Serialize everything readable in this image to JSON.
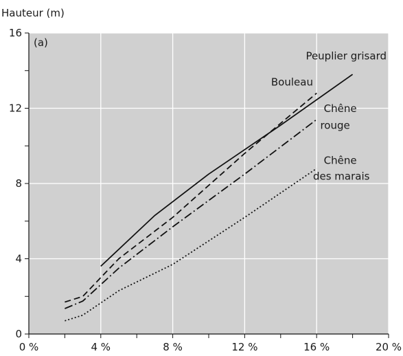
{
  "chart_data": {
    "type": "line",
    "title": "",
    "panel_label": "(a)",
    "ylabel": "Hauteur (m)",
    "xlabel": "",
    "xlim": [
      0,
      20
    ],
    "ylim": [
      0,
      16
    ],
    "x_ticks": [
      0,
      4,
      8,
      12,
      16,
      20
    ],
    "x_tick_labels": [
      "0 %",
      "4 %",
      "8 %",
      "12 %",
      "16 %",
      "20 %"
    ],
    "y_ticks": [
      0,
      4,
      8,
      12,
      16
    ],
    "y_tick_labels": [
      "0",
      "4",
      "8",
      "12",
      "16"
    ],
    "grid": true,
    "background": "#d0d0d0",
    "series": [
      {
        "name": "Peuplier grisard",
        "style": "solid",
        "x": [
          4,
          7,
          10,
          14,
          18
        ],
        "y": [
          3.6,
          6.3,
          8.5,
          11.1,
          13.8
        ]
      },
      {
        "name": "Bouleau",
        "style": "dashed",
        "x": [
          2,
          3,
          4,
          5,
          8,
          12,
          16
        ],
        "y": [
          1.7,
          2.0,
          3.0,
          4.0,
          6.2,
          9.6,
          12.8
        ]
      },
      {
        "name": "Chêne rouge",
        "style": "dashdot",
        "x": [
          2,
          3,
          5,
          8,
          12,
          16
        ],
        "y": [
          1.35,
          1.75,
          3.5,
          5.7,
          8.5,
          11.4
        ]
      },
      {
        "name": "Chêne des marais",
        "style": "dotted",
        "x": [
          2,
          3,
          5,
          8,
          12,
          16
        ],
        "y": [
          0.7,
          1.0,
          2.3,
          3.7,
          6.2,
          8.8
        ]
      }
    ]
  }
}
